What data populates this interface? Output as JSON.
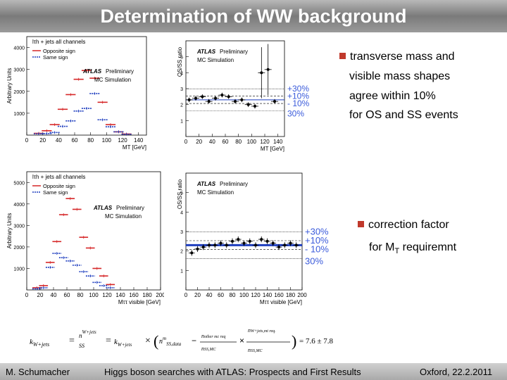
{
  "slide_title": "Determination of WW background",
  "bullets": [
    {
      "lines": [
        "transverse mass  and",
        "visible mass shapes",
        "agree within 10%",
        "for OS and SS events"
      ]
    },
    {
      "lines": [
        "correction factor",
        "for M",
        "T",
        " requiremnt"
      ]
    }
  ],
  "footer": {
    "author": "M. Schumacher",
    "talk": "Higgs boson searches with ATLAS: Prospects and First Results",
    "venue": "Oxford, 22.2.2011"
  },
  "plot_labels": {
    "atlas": "ATLAS",
    "preliminary": "Preliminary",
    "mcsim": "MC Simulation",
    "channel": "lτh + jets  all channels",
    "opposite": "Opposite sign",
    "same": "Same sign",
    "ylabel_arb": "Arbitrary Units",
    "ylabel_ratio": "OS/SS ratio",
    "xlabel_mt": "MT [GeV]",
    "xlabel_mvis": "Mττ visible [GeV]"
  },
  "bands": [
    "+30%",
    "+10%",
    "- 10%",
    "30%"
  ],
  "formula_result": "= 7.6 ± 7.8",
  "chart_data": [
    {
      "type": "scatter",
      "title": "",
      "xlabel": "MT [GeV]",
      "ylabel": "Arbitrary Units",
      "xlim": [
        0,
        150
      ],
      "ylim": [
        0,
        4500
      ],
      "series": [
        {
          "name": "Opposite sign",
          "x": [
            15,
            25,
            35,
            45,
            55,
            65,
            75,
            85,
            95,
            105,
            115,
            125
          ],
          "y": [
            80,
            200,
            480,
            1180,
            1850,
            2550,
            2950,
            2600,
            1500,
            480,
            150,
            50
          ]
        },
        {
          "name": "Same sign",
          "x": [
            15,
            25,
            35,
            45,
            55,
            65,
            75,
            85,
            95,
            105,
            115,
            125
          ],
          "y": [
            60,
            70,
            120,
            400,
            650,
            1100,
            1220,
            1900,
            700,
            380,
            150,
            40
          ]
        }
      ]
    },
    {
      "type": "scatter",
      "title": "",
      "xlabel": "MT [GeV]",
      "ylabel": "OS/SS ratio",
      "xlim": [
        0,
        150
      ],
      "ylim": [
        0,
        6
      ],
      "series": [
        {
          "name": "",
          "x": [
            5,
            15,
            25,
            35,
            45,
            55,
            65,
            75,
            85,
            95,
            105,
            115,
            125,
            135
          ],
          "y": [
            2.3,
            2.4,
            2.5,
            2.2,
            2.4,
            2.6,
            2.5,
            2.2,
            2.3,
            2.0,
            1.9,
            4.0,
            4.2,
            2.2
          ]
        }
      ]
    },
    {
      "type": "scatter",
      "title": "",
      "xlabel": "Mττ visible [GeV]",
      "ylabel": "Arbitrary Units",
      "xlim": [
        0,
        200
      ],
      "ylim": [
        0,
        5500
      ],
      "series": [
        {
          "name": "Opposite sign",
          "x": [
            15,
            25,
            35,
            45,
            55,
            65,
            75,
            85,
            95,
            105,
            115,
            125
          ],
          "y": [
            100,
            200,
            1280,
            2250,
            3500,
            4250,
            3750,
            2450,
            1950,
            1000,
            650,
            250
          ]
        },
        {
          "name": "Same sign",
          "x": [
            15,
            25,
            35,
            45,
            55,
            65,
            75,
            85,
            95,
            105,
            115,
            125
          ],
          "y": [
            50,
            100,
            1050,
            1700,
            1500,
            1350,
            1150,
            850,
            650,
            350,
            200,
            100
          ]
        }
      ]
    },
    {
      "type": "scatter",
      "title": "",
      "xlabel": "Mττ visible [GeV]",
      "ylabel": "OS/SS ratio",
      "xlim": [
        0,
        200
      ],
      "ylim": [
        0,
        6
      ],
      "series": [
        {
          "name": "",
          "x": [
            10,
            20,
            30,
            40,
            50,
            60,
            70,
            80,
            90,
            100,
            110,
            120,
            130,
            140,
            150,
            160,
            170,
            180,
            190
          ],
          "y": [
            1.9,
            2.1,
            2.2,
            2.3,
            2.3,
            2.4,
            2.3,
            2.5,
            2.6,
            2.4,
            2.5,
            2.3,
            2.6,
            2.5,
            2.4,
            2.2,
            2.3,
            2.4,
            2.3
          ]
        }
      ]
    }
  ]
}
